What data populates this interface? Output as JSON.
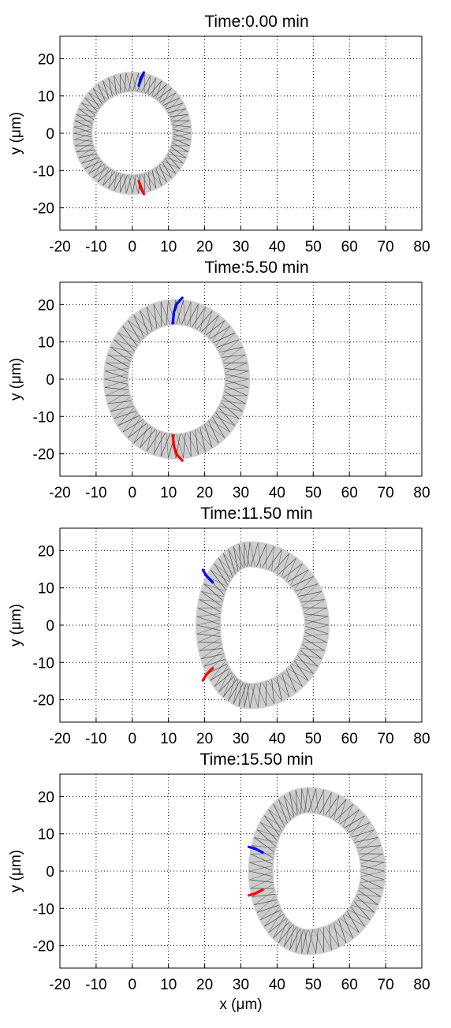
{
  "figure": {
    "background": "#ffffff",
    "grid_color": "#000000",
    "axis_color": "#000000"
  },
  "chart_data": [
    {
      "type": "line",
      "title": "Time:0.00 min",
      "xlabel": "",
      "ylabel": "y (μm)",
      "xlim": [
        -20,
        80
      ],
      "ylim": [
        -26,
        26
      ],
      "xticks": [
        -20,
        -10,
        0,
        10,
        20,
        30,
        40,
        50,
        60,
        70,
        80
      ],
      "yticks": [
        -20,
        -10,
        0,
        10,
        20
      ],
      "xtick_labels": [
        "-20",
        "-10",
        "0",
        "10",
        "20",
        "30",
        "40",
        "50",
        "60",
        "70",
        "80"
      ],
      "ytick_labels": [
        "-20",
        "-10",
        "0",
        "10",
        "20"
      ],
      "grid": true,
      "cell": {
        "center": [
          0,
          0
        ],
        "rx_left": 16.5,
        "rx_right": 16.5,
        "ry": 16.5,
        "membrane_thickness": 5.5,
        "fill": "#c8c8c8"
      },
      "series": [
        {
          "color": "#0000ff",
          "x": [
            1.8,
            2.4,
            3.2
          ],
          "y": [
            12.8,
            14.8,
            16.3
          ]
        },
        {
          "color": "#ff0000",
          "x": [
            1.8,
            2.4,
            3.2
          ],
          "y": [
            -12.8,
            -14.8,
            -16.3
          ]
        }
      ]
    },
    {
      "type": "line",
      "title": "Time:5.50 min",
      "xlabel": "",
      "ylabel": "y (μm)",
      "xlim": [
        -20,
        80
      ],
      "ylim": [
        -26,
        26
      ],
      "xticks": [
        -20,
        -10,
        0,
        10,
        20,
        30,
        40,
        50,
        60,
        70,
        80
      ],
      "yticks": [
        -20,
        -10,
        0,
        10,
        20
      ],
      "xtick_labels": [
        "-20",
        "-10",
        "0",
        "10",
        "20",
        "30",
        "40",
        "50",
        "60",
        "70",
        "80"
      ],
      "ytick_labels": [
        "-20",
        "-10",
        "0",
        "10",
        "20"
      ],
      "grid": true,
      "cell": {
        "center": [
          12,
          0
        ],
        "rx_left": 20,
        "rx_right": 20.5,
        "ry": 21.5,
        "membrane_thickness": 7,
        "fill": "#c8c8c8"
      },
      "series": [
        {
          "color": "#0000ff",
          "x": [
            11.2,
            11.5,
            12.3,
            13.8
          ],
          "y": [
            15,
            18,
            20.2,
            21.8
          ]
        },
        {
          "color": "#ff0000",
          "x": [
            11.2,
            11.5,
            12.3,
            13.8
          ],
          "y": [
            -15,
            -18,
            -20.2,
            -21.8
          ]
        }
      ]
    },
    {
      "type": "line",
      "title": "Time:11.50 min",
      "xlabel": "",
      "ylabel": "y (μm)",
      "xlim": [
        -20,
        80
      ],
      "ylim": [
        -26,
        26
      ],
      "xticks": [
        -20,
        -10,
        0,
        10,
        20,
        30,
        40,
        50,
        60,
        70,
        80
      ],
      "yticks": [
        -20,
        -10,
        0,
        10,
        20
      ],
      "xtick_labels": [
        "-20",
        "-10",
        "0",
        "10",
        "20",
        "30",
        "40",
        "50",
        "60",
        "70",
        "80"
      ],
      "ytick_labels": [
        "-20",
        "-10",
        "0",
        "10",
        "20"
      ],
      "grid": true,
      "cell": {
        "center": [
          32.5,
          0
        ],
        "rx_left": 15,
        "rx_right": 22,
        "ry": 22.5,
        "membrane_thickness": 7,
        "fill": "#c8c8c8"
      },
      "series": [
        {
          "color": "#0000ff",
          "x": [
            19.5,
            20.5,
            22.2
          ],
          "y": [
            14.8,
            13.2,
            11.5
          ]
        },
        {
          "color": "#ff0000",
          "x": [
            19.5,
            20.5,
            22.2
          ],
          "y": [
            -14.8,
            -13.2,
            -11.5
          ]
        }
      ]
    },
    {
      "type": "line",
      "title": "Time:15.50 min",
      "xlabel": "x (μm)",
      "ylabel": "y (μm)",
      "xlim": [
        -20,
        80
      ],
      "ylim": [
        -26,
        26
      ],
      "xticks": [
        -20,
        -10,
        0,
        10,
        20,
        30,
        40,
        50,
        60,
        70,
        80
      ],
      "yticks": [
        -20,
        -10,
        0,
        10,
        20
      ],
      "xtick_labels": [
        "-20",
        "-10",
        "0",
        "10",
        "20",
        "30",
        "40",
        "50",
        "60",
        "70",
        "80"
      ],
      "ytick_labels": [
        "-20",
        "-10",
        "0",
        "10",
        "20"
      ],
      "grid": true,
      "cell": {
        "center": [
          48.5,
          0
        ],
        "rx_left": 16.5,
        "rx_right": 21.5,
        "ry": 22.5,
        "membrane_thickness": 7,
        "fill": "#c8c8c8"
      },
      "series": [
        {
          "color": "#0000ff",
          "x": [
            32.2,
            34.2,
            36.0
          ],
          "y": [
            6.5,
            5.9,
            5.0
          ]
        },
        {
          "color": "#ff0000",
          "x": [
            32.2,
            34.2,
            36.0
          ],
          "y": [
            -6.5,
            -5.9,
            -5.0
          ]
        }
      ]
    }
  ]
}
